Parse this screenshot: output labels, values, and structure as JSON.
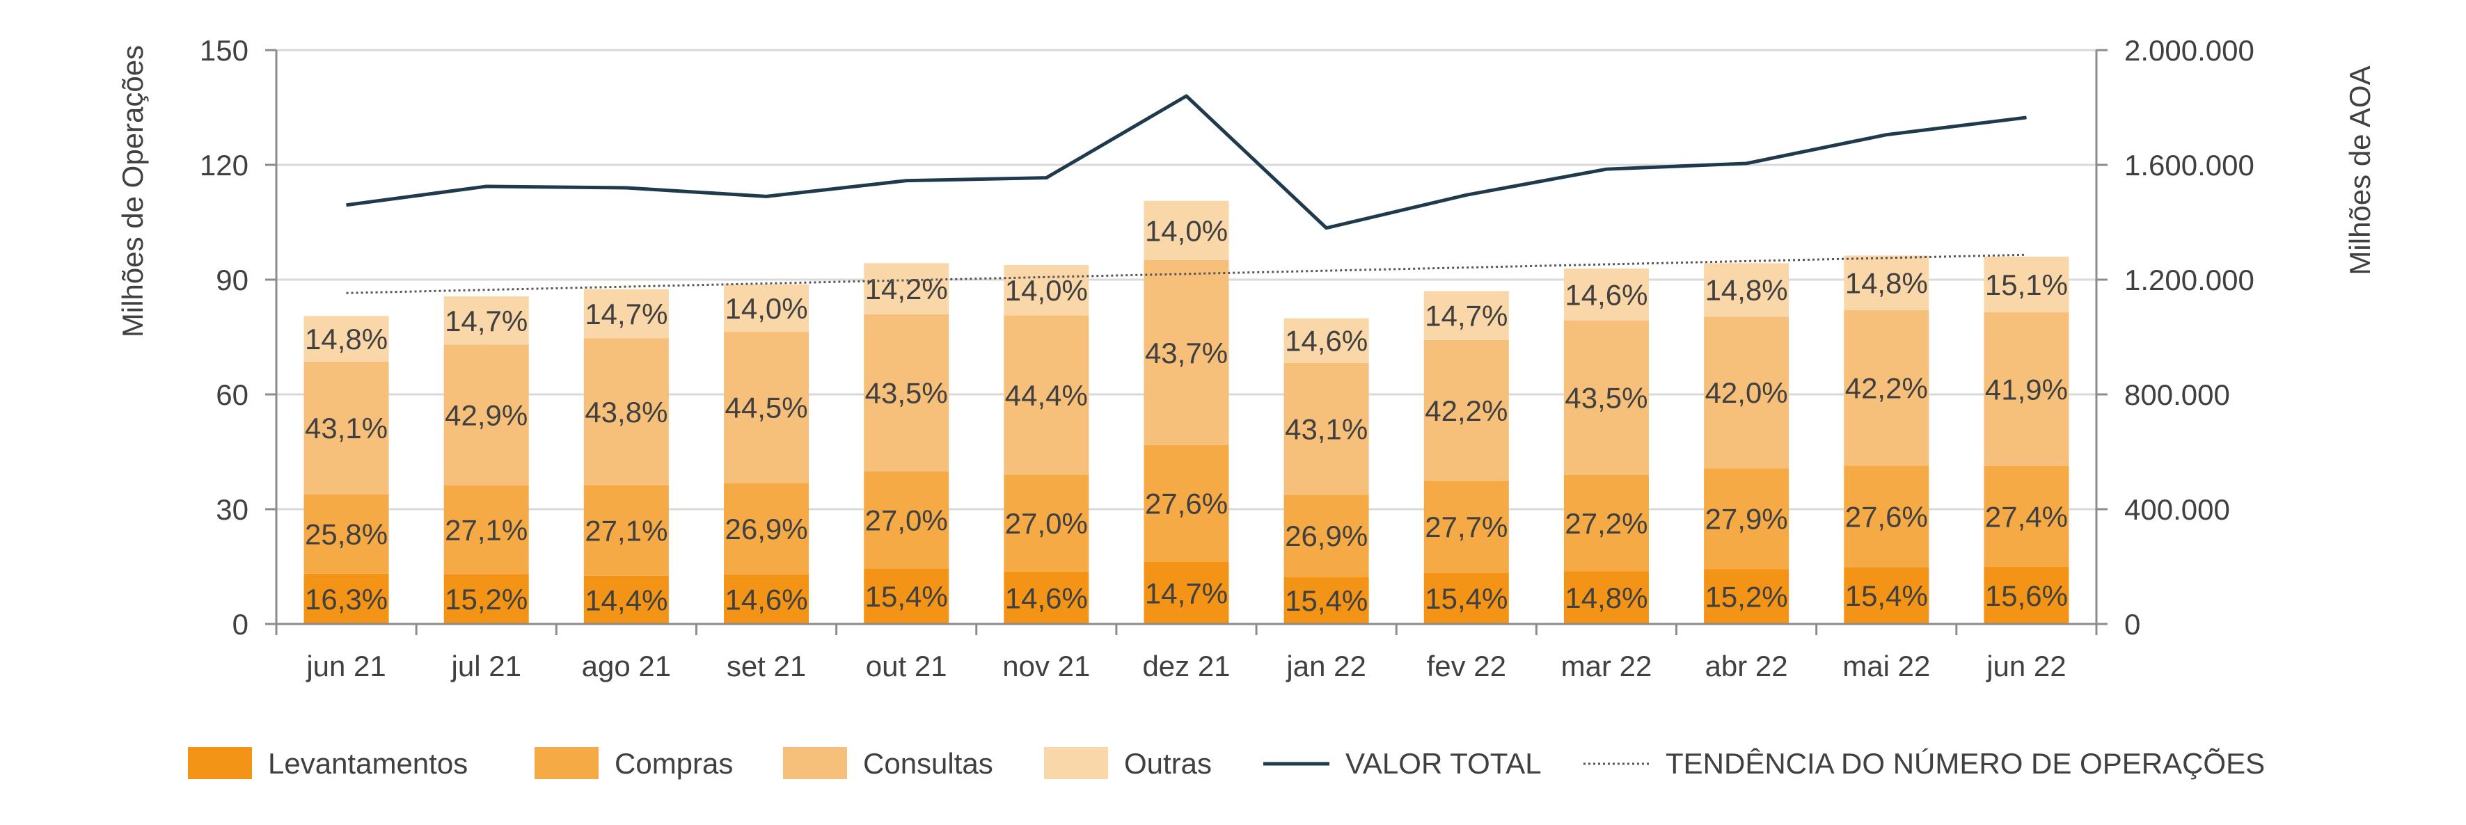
{
  "chart_data": {
    "type": "bar",
    "stacked": true,
    "title": "",
    "categories": [
      "jun 21",
      "jul 21",
      "ago 21",
      "set 21",
      "out 21",
      "nov 21",
      "dez 21",
      "jan 22",
      "fev 22",
      "mar 22",
      "abr 22",
      "mai 22",
      "jun 22"
    ],
    "totals": [
      80.5,
      85.7,
      87.5,
      88.8,
      94.2,
      93.8,
      110.6,
      79.9,
      87.0,
      92.8,
      94.4,
      96.3,
      96.0
    ],
    "series": [
      {
        "name": "Levantamentos",
        "color": "#f39417",
        "labels": [
          "16,3%",
          "15,2%",
          "14,4%",
          "14,6%",
          "15,4%",
          "14,6%",
          "14,7%",
          "15,4%",
          "15,4%",
          "14,8%",
          "15,2%",
          "15,4%",
          "15,6%"
        ],
        "shares": [
          16.3,
          15.2,
          14.4,
          14.6,
          15.4,
          14.6,
          14.7,
          15.4,
          15.4,
          14.8,
          15.2,
          15.4,
          15.6
        ]
      },
      {
        "name": "Compras",
        "color": "#f5aa45",
        "labels": [
          "25,8%",
          "27,1%",
          "27,1%",
          "26,9%",
          "27,0%",
          "27,0%",
          "27,6%",
          "26,9%",
          "27,7%",
          "27,2%",
          "27,9%",
          "27,6%",
          "27,4%"
        ],
        "shares": [
          25.8,
          27.1,
          27.1,
          26.9,
          27.0,
          27.0,
          27.6,
          26.9,
          27.7,
          27.2,
          27.9,
          27.6,
          27.4
        ]
      },
      {
        "name": "Consultas",
        "color": "#f7c07a",
        "labels": [
          "43,1%",
          "42,9%",
          "43,8%",
          "44,5%",
          "43,5%",
          "44,4%",
          "43,7%",
          "43,1%",
          "42,2%",
          "43,5%",
          "42,0%",
          "42,2%",
          "41,9%"
        ],
        "shares": [
          43.1,
          42.9,
          43.8,
          44.5,
          43.5,
          44.4,
          43.7,
          43.1,
          42.2,
          43.5,
          42.0,
          42.2,
          41.9
        ]
      },
      {
        "name": "Outras",
        "color": "#fad7a8",
        "labels": [
          "14,8%",
          "14,7%",
          "14,7%",
          "14,0%",
          "14,2%",
          "14,0%",
          "14,0%",
          "14,6%",
          "14,7%",
          "14,6%",
          "14,8%",
          "14,8%",
          "15,1%"
        ],
        "shares": [
          14.8,
          14.7,
          14.7,
          14.0,
          14.2,
          14.0,
          14.0,
          14.6,
          14.7,
          14.6,
          14.8,
          14.8,
          15.1
        ]
      }
    ],
    "line": {
      "name": "VALOR TOTAL",
      "axis": "right",
      "color": "#1f3a4d",
      "values": [
        1460000,
        1525000,
        1520000,
        1490000,
        1545000,
        1555000,
        1840000,
        1380000,
        1495000,
        1585000,
        1605000,
        1705000,
        1765000
      ]
    },
    "trend": {
      "name": "TENDÊNCIA DO NÚMERO DE OPERAÇÕES",
      "axis": "left",
      "color": "#555555",
      "start": 86.5,
      "end": 96.5
    },
    "ylabel": "Milhões de Operações",
    "y2label": "Milhões de AOA",
    "ylim": [
      0,
      150
    ],
    "y2lim": [
      0,
      2000000
    ],
    "yticks": [
      "0",
      "30",
      "60",
      "90",
      "120",
      "150"
    ],
    "y2ticks": [
      "0",
      "400.000",
      "800.000",
      "1.200.000",
      "1.600.000",
      "2.000.000"
    ],
    "grid": true,
    "legend_position": "bottom"
  }
}
